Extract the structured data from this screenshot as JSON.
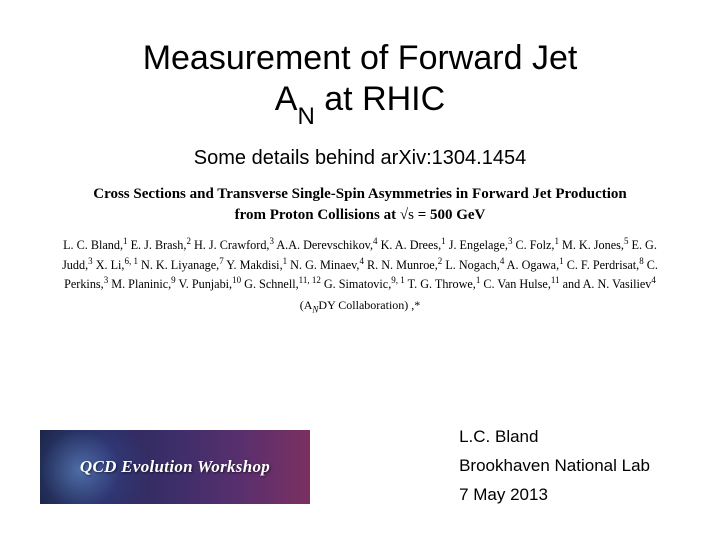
{
  "title": {
    "line1": "Measurement of Forward Jet",
    "symbol_base": "A",
    "symbol_sub": "N",
    "line2_tail": " at RHIC"
  },
  "subtitle": "Some details behind arXiv:1304.1454",
  "paper_title": {
    "part1": "Cross Sections and Transverse Single-Spin Asymmetries in Forward Jet Production",
    "part2_pre": "from Proton Collisions at ",
    "sqrt": "√s",
    "eq": " = 500 GeV"
  },
  "authors_html": "L. C. Bland,<sup>1</sup> E. J. Brash,<sup>2</sup> H. J. Crawford,<sup>3</sup> A.A. Derevschikov,<sup>4</sup> K. A. Drees,<sup>1</sup> J. Engelage,<sup>3</sup> C. Folz,<sup>1</sup> M. K. Jones,<sup>5</sup> E. G. Judd,<sup>3</sup> X. Li,<sup>6, 1</sup> N. K. Liyanage,<sup>7</sup> Y. Makdisi,<sup>1</sup> N. G. Minaev,<sup>4</sup> R. N. Munroe,<sup>2</sup> L. Nogach,<sup>4</sup> A. Ogawa,<sup>1</sup> C. F. Perdrisat,<sup>8</sup> C. Perkins,<sup>3</sup> M. Planinic,<sup>9</sup> V. Punjabi,<sup>10</sup> G. Schnell,<sup>11, 12</sup> G. Simatovic,<sup>9, 1</sup> T. G. Throwe,<sup>1</sup> C. Van Hulse,<sup>11</sup> and A. N. Vasiliev<sup>4</sup>",
  "collaboration": {
    "open": "(A",
    "sub": "N",
    "tail": "DY  Collaboration) ,*"
  },
  "workshop_banner": {
    "text": "QCD Evolution Workshop",
    "gradient_colors": [
      "#1a1f3a",
      "#2b2a5c",
      "#3d2e6a",
      "#5a2f6e",
      "#7a3060"
    ]
  },
  "presenter": {
    "name": "L.C. Bland",
    "affiliation": "Brookhaven National Lab",
    "date": "7 May 2013"
  },
  "style": {
    "bg_color": "#ffffff",
    "text_color": "#000000",
    "title_fontsize": 34,
    "subtitle_fontsize": 20,
    "paper_title_fontsize": 15,
    "authors_fontsize": 12.2,
    "presenter_fontsize": 17,
    "banner_text_color": "#ffffff"
  }
}
